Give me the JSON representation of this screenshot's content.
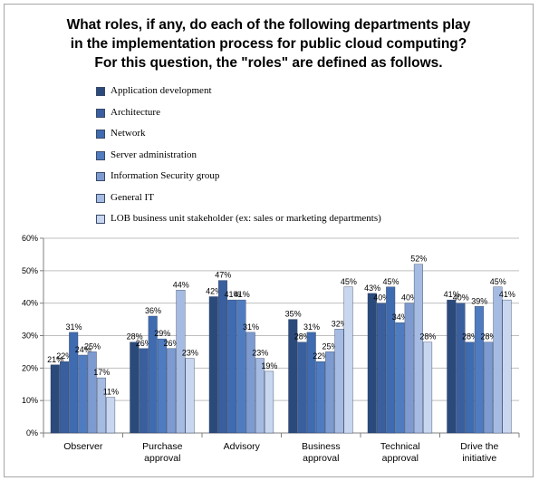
{
  "chart_data": {
    "type": "bar",
    "title_lines": [
      "What roles, if any, do each of the following departments play",
      "in the implementation process for public cloud computing?",
      "For this question, the \"roles\" are defined as follows."
    ],
    "categories": [
      [
        "Observer"
      ],
      [
        "Purchase",
        "approval"
      ],
      [
        "Advisory"
      ],
      [
        "Business",
        "approval"
      ],
      [
        "Technical",
        "approval"
      ],
      [
        "Drive the",
        "initiative"
      ]
    ],
    "series": [
      {
        "name": "Application development",
        "color": "#2b4a7c",
        "values": [
          21,
          28,
          42,
          35,
          43,
          41
        ],
        "labels": [
          "21%",
          "28%",
          "42%",
          "35%",
          "43%",
          "41%"
        ]
      },
      {
        "name": "Architecture",
        "color": "#3a5f9e",
        "values": [
          22,
          26,
          47,
          28,
          40,
          40
        ],
        "labels": [
          "22%",
          "26%",
          "47%",
          "28%",
          "40%",
          "40%"
        ]
      },
      {
        "name": "Network",
        "color": "#3f6bb0",
        "values": [
          31,
          36,
          41,
          31,
          45,
          28
        ],
        "labels": [
          "31%",
          "36%",
          "41%",
          "31%",
          "45%",
          "28%"
        ]
      },
      {
        "name": "Server administration",
        "color": "#4f7cc0",
        "values": [
          24,
          29,
          41,
          22,
          34,
          39
        ],
        "labels": [
          "24%",
          "29%",
          "41%",
          "22%",
          "34%",
          "39%"
        ]
      },
      {
        "name": "Information Security group",
        "color": "#7d9bd0",
        "values": [
          25,
          26,
          31,
          25,
          40,
          28
        ],
        "labels": [
          "25%",
          "26%",
          "31%",
          "25%",
          "40%",
          "28%"
        ]
      },
      {
        "name": "General IT",
        "color": "#a6bbe1",
        "values": [
          17,
          44,
          23,
          32,
          52,
          45
        ],
        "labels": [
          "17%",
          "44%",
          "23%",
          "32%",
          "52%",
          "45%"
        ]
      },
      {
        "name": "LOB business unit stakeholder (ex: sales or marketing departments)",
        "color": "#c8d6ef",
        "values": [
          11,
          23,
          19,
          45,
          28,
          41
        ],
        "labels": [
          "11%",
          "23%",
          "19%",
          "45%",
          "28%",
          "41%"
        ]
      }
    ],
    "ylim": [
      0,
      60
    ],
    "yticks": [
      "0%",
      "10%",
      "20%",
      "30%",
      "40%",
      "50%",
      "60%"
    ],
    "grid": true,
    "legend": "top"
  }
}
